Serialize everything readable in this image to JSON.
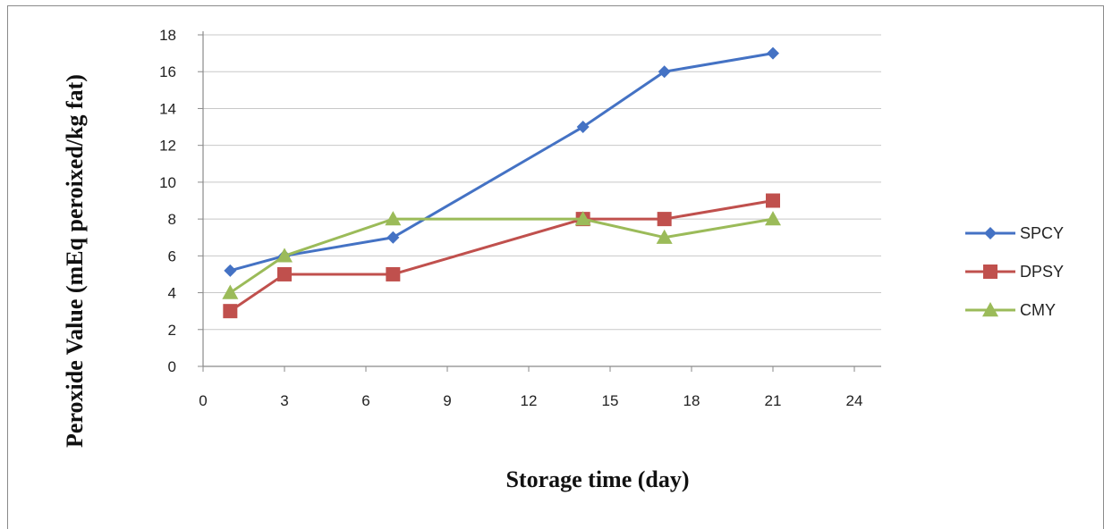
{
  "chart_data": {
    "type": "line",
    "title": "",
    "xlabel": "Storage time (day)",
    "ylabel": "Peroxide Value (mEq peroixed/kg fat)",
    "xlim": [
      0,
      24
    ],
    "ylim": [
      0,
      18
    ],
    "xticks": [
      0,
      3,
      6,
      9,
      12,
      15,
      18,
      21,
      24
    ],
    "yticks": [
      0,
      2,
      4,
      6,
      8,
      10,
      12,
      14,
      16,
      18
    ],
    "grid": "horizontal",
    "legend_position": "right",
    "series": [
      {
        "name": "SPCY",
        "color": "#4472C4",
        "marker": "diamond",
        "x": [
          1,
          3,
          7,
          14,
          17,
          21
        ],
        "y": [
          5.2,
          6,
          7,
          13,
          16,
          17
        ]
      },
      {
        "name": "DPSY",
        "color": "#C0504D",
        "marker": "square",
        "x": [
          1,
          3,
          7,
          14,
          17,
          21
        ],
        "y": [
          3,
          5,
          5,
          8,
          8,
          9
        ]
      },
      {
        "name": "CMY",
        "color": "#9BBB59",
        "marker": "triangle",
        "x": [
          1,
          3,
          7,
          14,
          17,
          21
        ],
        "y": [
          4,
          6,
          8,
          8,
          7,
          8
        ]
      }
    ]
  }
}
